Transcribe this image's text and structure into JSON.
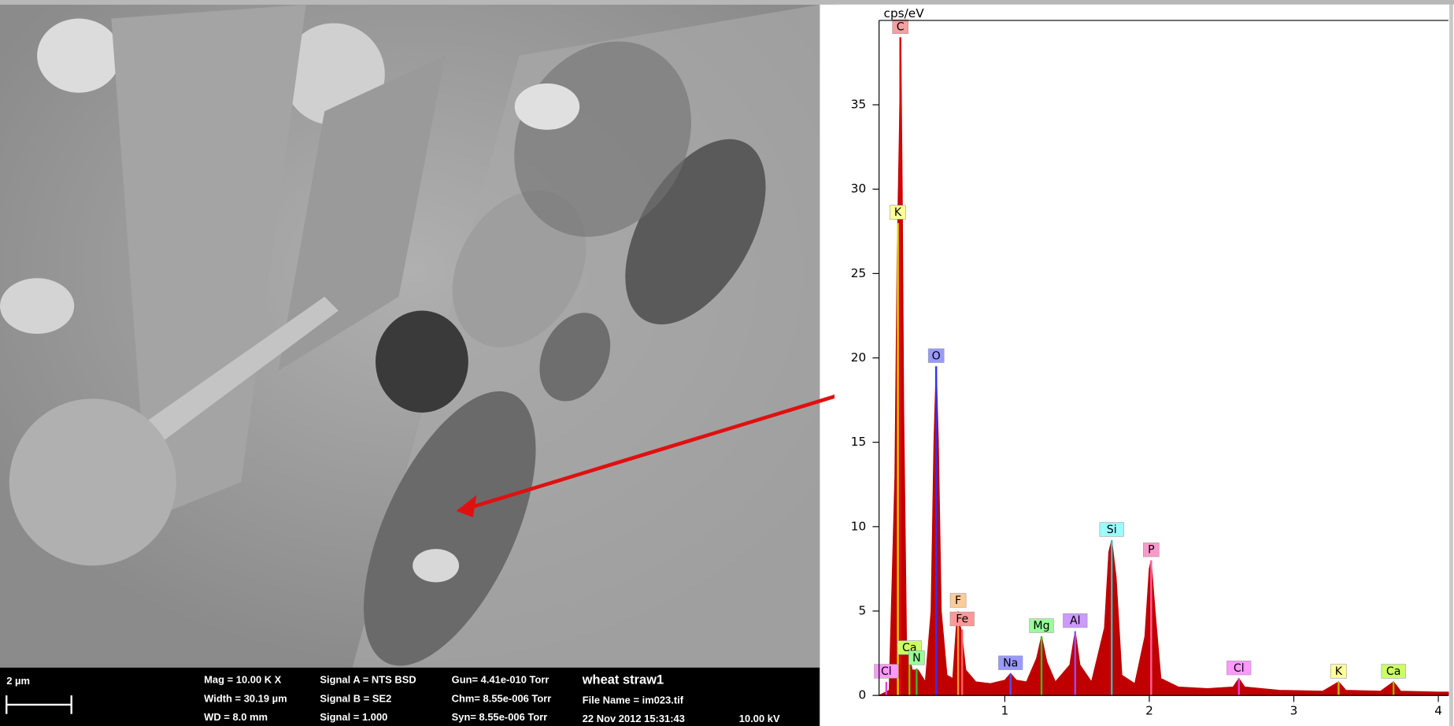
{
  "sem_panel": {
    "scale_bar": "2 µm",
    "info": [
      [
        "Mag =  10.00 K X",
        "Width = 30.19 µm",
        "WD =  8.0 mm"
      ],
      [
        "Signal A = NTS BSD",
        "Signal B = SE2",
        "Signal =  1.000"
      ],
      [
        "Gun= 4.41e-010 Torr",
        "Chm= 8.55e-006 Torr",
        "Syn= 8.55e-006 Torr"
      ],
      [
        "wheat straw1",
        "File Name = im023.tif",
        "22 Nov 2012 15:31:43"
      ],
      [
        "10.00 kV"
      ]
    ]
  },
  "chart_data": {
    "type": "area",
    "y_label": "cps/eV",
    "color": "#c00000",
    "xlim": [
      0.13,
      4.07
    ],
    "ylim": [
      0,
      40
    ],
    "xticks": [
      1,
      2,
      3,
      4
    ],
    "yticks": [
      0,
      5,
      10,
      15,
      20,
      25,
      30,
      35
    ],
    "x": [
      0.13,
      0.2,
      0.24,
      0.255,
      0.27,
      0.28,
      0.29,
      0.3,
      0.32,
      0.36,
      0.4,
      0.45,
      0.49,
      0.51,
      0.525,
      0.54,
      0.56,
      0.6,
      0.64,
      0.67,
      0.7,
      0.73,
      0.8,
      0.9,
      1.0,
      1.04,
      1.08,
      1.15,
      1.22,
      1.254,
      1.29,
      1.35,
      1.45,
      1.487,
      1.52,
      1.6,
      1.69,
      1.72,
      1.74,
      1.77,
      1.81,
      1.9,
      1.97,
      2.0,
      2.013,
      2.04,
      2.08,
      2.2,
      2.4,
      2.58,
      2.62,
      2.66,
      2.9,
      3.2,
      3.31,
      3.36,
      3.6,
      3.69,
      3.74,
      4.0,
      4.07
    ],
    "values": [
      0,
      0.3,
      13,
      26,
      33,
      39,
      30,
      17,
      3,
      1.5,
      1.5,
      0.8,
      5,
      15,
      19.5,
      15,
      5,
      1.2,
      1,
      4.8,
      3.8,
      1.5,
      0.8,
      0.7,
      0.9,
      1.3,
      0.9,
      0.8,
      2.2,
      3.5,
      2,
      0.8,
      1.8,
      3.8,
      1.8,
      0.8,
      4,
      8.5,
      9.2,
      7,
      1.2,
      0.7,
      3.5,
      7.5,
      8,
      5,
      1,
      0.5,
      0.4,
      0.5,
      1,
      0.5,
      0.3,
      0.25,
      0.8,
      0.3,
      0.25,
      0.8,
      0.25,
      0.2,
      0.2
    ],
    "annotations": [
      {
        "text": "C",
        "x": 0.277,
        "y": 39,
        "color": "#f4a0a0",
        "line": "#e00000"
      },
      {
        "text": "K",
        "x": 0.26,
        "y": 28,
        "color": "#ffff99",
        "line": "#e0e000"
      },
      {
        "text": "Cl",
        "x": 0.18,
        "y": 0.8,
        "color": "#ff99ff",
        "line": "#e040e0"
      },
      {
        "text": "Ca",
        "x": 0.34,
        "y": 2.2,
        "color": "#ccff66",
        "line": "#80c000"
      },
      {
        "text": "N",
        "x": 0.39,
        "y": 1.6,
        "color": "#99ff99",
        "line": "#30c030"
      },
      {
        "text": "O",
        "x": 0.525,
        "y": 19.5,
        "color": "#9999ff",
        "line": "#3030ff"
      },
      {
        "text": "F",
        "x": 0.677,
        "y": 5,
        "color": "#ffcc99",
        "line": "#ff9933"
      },
      {
        "text": "Fe",
        "x": 0.705,
        "y": 3.9,
        "color": "#ff9999",
        "line": "#ff6060"
      },
      {
        "text": "Na",
        "x": 1.04,
        "y": 1.3,
        "color": "#9999ff",
        "line": "#5050ff"
      },
      {
        "text": "Mg",
        "x": 1.254,
        "y": 3.5,
        "color": "#99ff99",
        "line": "#30c030"
      },
      {
        "text": "Al",
        "x": 1.487,
        "y": 3.8,
        "color": "#cc99ff",
        "line": "#9050ff"
      },
      {
        "text": "Si",
        "x": 1.74,
        "y": 9.2,
        "color": "#99ffff",
        "line": "#30c0c0"
      },
      {
        "text": "P",
        "x": 2.013,
        "y": 8,
        "color": "#ff99cc",
        "line": "#ff60a0"
      },
      {
        "text": "Cl",
        "x": 2.62,
        "y": 1,
        "color": "#ff99ff",
        "line": "#e040e0"
      },
      {
        "text": "K",
        "x": 3.31,
        "y": 0.8,
        "color": "#ffff99",
        "line": "#c0c000"
      },
      {
        "text": "Ca",
        "x": 3.69,
        "y": 0.8,
        "color": "#ccff66",
        "line": "#80c000"
      }
    ]
  }
}
